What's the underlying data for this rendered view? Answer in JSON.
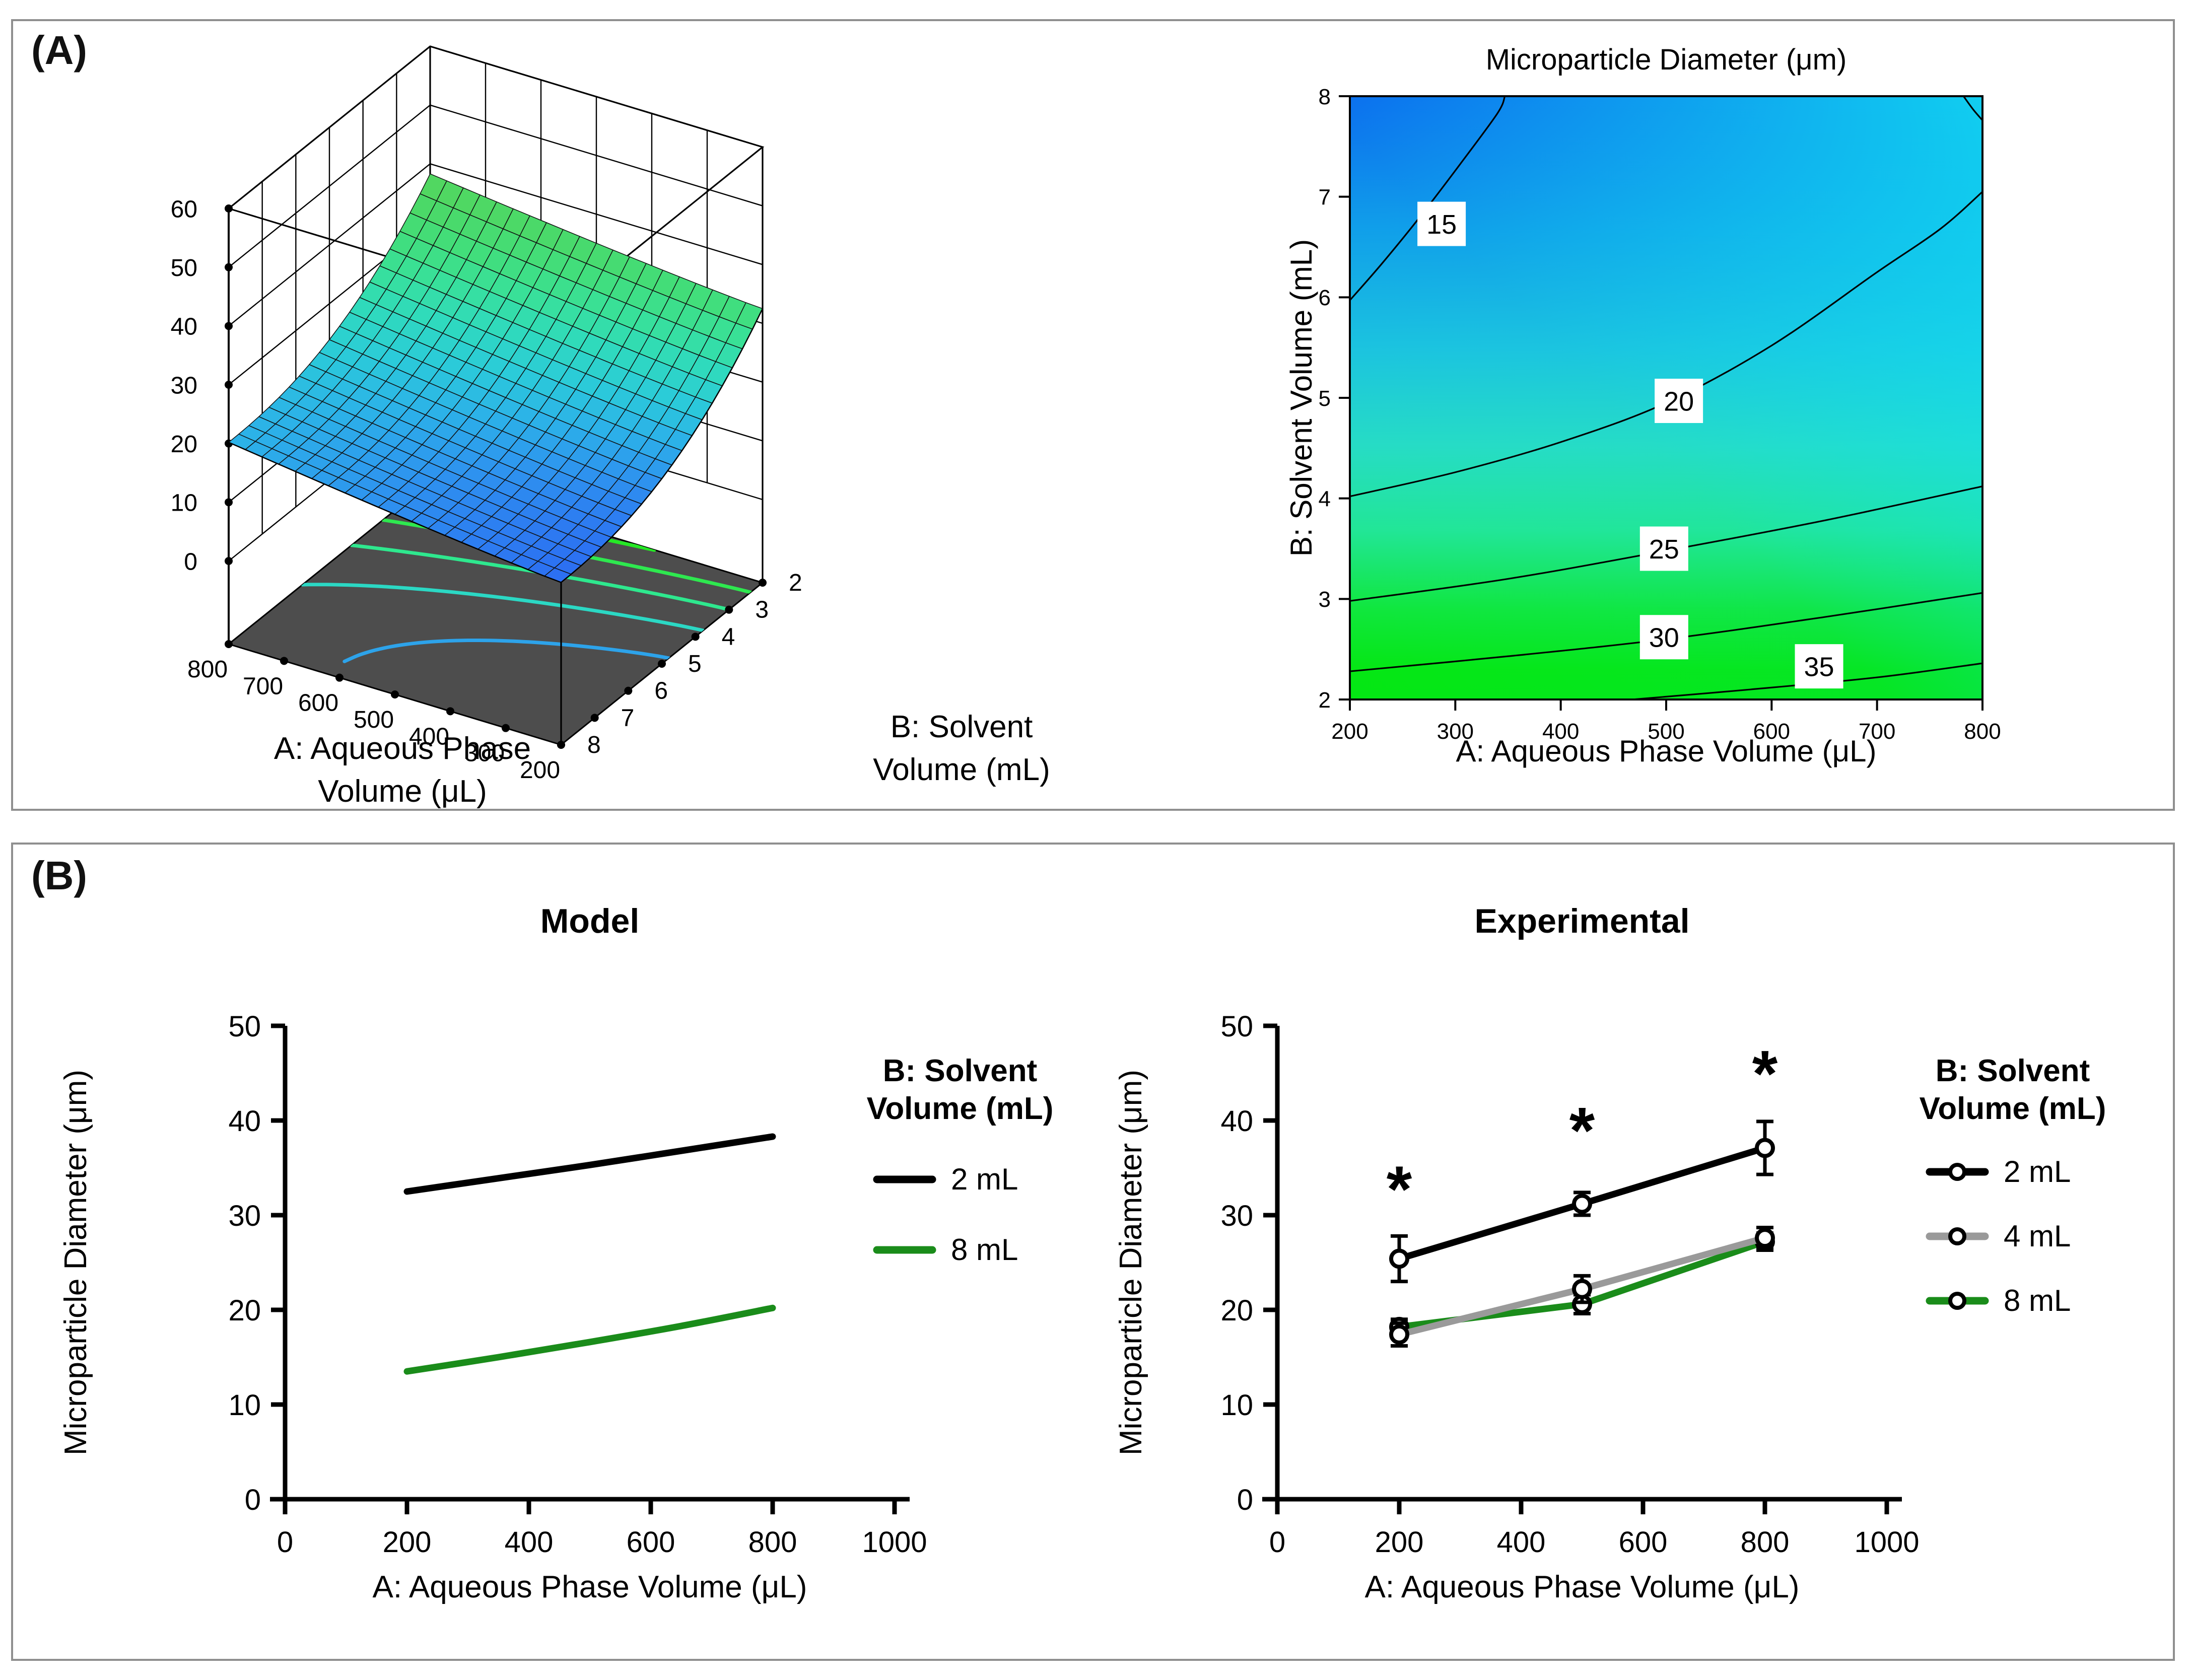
{
  "panel_a": {
    "label": "(A)"
  },
  "panel_b": {
    "label": "(B)"
  },
  "colors": {
    "panel_border": "#8f8f8f",
    "series_black": "#000000",
    "series_gray": "#9a9a9a",
    "series_green": "#1a8c1a",
    "floor": "#4d4d4d",
    "contour_blue": "#0b62ee",
    "contour_cyan": "#12e1f0",
    "contour_green": "#04e713"
  },
  "chart_data": [
    {
      "id": "surface3d",
      "type": "surface3d",
      "x_label_lines": [
        "A: Aqueous Phase",
        "Volume (μL)"
      ],
      "y_label_lines": [
        "B: Solvent",
        "Volume (mL)"
      ],
      "x_ticks": [
        800,
        700,
        600,
        500,
        400,
        300,
        200
      ],
      "y_ticks": [
        8,
        7,
        6,
        5,
        4,
        3,
        2
      ],
      "z_ticks": [
        0,
        10,
        20,
        30,
        40,
        50,
        60
      ],
      "x_range": [
        200,
        800
      ],
      "y_range": [
        2,
        8
      ],
      "z_range": [
        0,
        60
      ],
      "surface_model": {
        "z_a200_b8": 13.5,
        "z_a800_b8": 20.2,
        "z_a200_b2": 32.5,
        "z_a800_b2": 38.3,
        "curve_exp_a": 1.15,
        "curve_exp_b": 2.3
      },
      "surface_colors": [
        [
          13.5,
          "#2c6ff2"
        ],
        [
          17,
          "#2e92ef"
        ],
        [
          20,
          "#2cb2e8"
        ],
        [
          23,
          "#2bcbd9"
        ],
        [
          26,
          "#2fdabd"
        ],
        [
          29,
          "#38e09b"
        ],
        [
          32,
          "#41de7c"
        ],
        [
          35,
          "#4bd969"
        ],
        [
          38.3,
          "#55d65c"
        ]
      ],
      "floor_color": "#4d4d4d",
      "floor_contours": [
        {
          "level": 18,
          "color": "#2da3ea"
        },
        {
          "level": 22,
          "color": "#2bd8c4"
        },
        {
          "level": 26,
          "color": "#2ee88e"
        },
        {
          "level": 30,
          "color": "#2ee84f"
        },
        {
          "level": 34,
          "color": "#25e825"
        }
      ]
    },
    {
      "id": "contour",
      "type": "contour",
      "title": "Microparticle Diameter (μm)",
      "x_label": "A: Aqueous Phase Volume (μL)",
      "y_label": "B: Solvent Volume (mL)",
      "x_ticks": [
        200,
        300,
        400,
        500,
        600,
        700,
        800
      ],
      "y_ticks": [
        2,
        3,
        4,
        5,
        6,
        7,
        8
      ],
      "x_range": [
        200,
        800
      ],
      "y_range": [
        2,
        8
      ],
      "gradient": {
        "top_left": "#0b62ee",
        "top_right": "#12dcee",
        "bottom": "#04e713"
      },
      "lines": [
        {
          "label": "15",
          "points": [
            [
              200,
              5.97
            ],
            [
              230,
              6.33
            ],
            [
              265,
              6.78
            ],
            [
              305,
              7.33
            ],
            [
              340,
              7.83
            ],
            [
              347,
              8
            ]
          ],
          "label_at": [
            287,
            6.73
          ]
        },
        {
          "label": "20",
          "points": [
            [
              200,
              4.02
            ],
            [
              300,
              4.26
            ],
            [
              400,
              4.56
            ],
            [
              500,
              4.95
            ],
            [
              600,
              5.52
            ],
            [
              700,
              6.25
            ],
            [
              760,
              6.68
            ],
            [
              800,
              7.05
            ]
          ],
          "label_at": [
            512,
            4.97
          ]
        },
        {
          "label": "",
          "points": [
            [
              782,
              8
            ],
            [
              791,
              7.87
            ],
            [
              800,
              7.76
            ]
          ],
          "label_at": null
        },
        {
          "label": "25",
          "points": [
            [
              200,
              2.98
            ],
            [
              350,
              3.2
            ],
            [
              500,
              3.48
            ],
            [
              650,
              3.78
            ],
            [
              800,
              4.12
            ]
          ],
          "label_at": [
            498,
            3.5
          ]
        },
        {
          "label": "30",
          "points": [
            [
              200,
              2.28
            ],
            [
              350,
              2.43
            ],
            [
              500,
              2.6
            ],
            [
              650,
              2.82
            ],
            [
              800,
              3.06
            ]
          ],
          "label_at": [
            498,
            2.62
          ]
        },
        {
          "label": "35",
          "points": [
            [
              468,
              2.0
            ],
            [
              580,
              2.1
            ],
            [
              700,
              2.22
            ],
            [
              800,
              2.36
            ]
          ],
          "label_at": [
            645,
            2.33
          ]
        }
      ]
    },
    {
      "id": "model",
      "type": "line",
      "title": "Model",
      "x_label": "A: Aqueous Phase Volume (μL)",
      "y_label": "Microparticle Diameter (μm)",
      "x_ticks": [
        0,
        200,
        400,
        600,
        800,
        1000
      ],
      "y_ticks": [
        0,
        10,
        20,
        30,
        40,
        50
      ],
      "x_range": [
        0,
        1000
      ],
      "y_range": [
        0,
        50
      ],
      "legend_title_lines": [
        "B: Solvent",
        "Volume (mL)"
      ],
      "series": [
        {
          "name": "2 mL",
          "color": "#000000",
          "markers": false,
          "smooth": true,
          "x": [
            200,
            350,
            500,
            650,
            800
          ],
          "y": [
            32.5,
            33.9,
            35.3,
            36.8,
            38.3
          ]
        },
        {
          "name": "8 mL",
          "color": "#1a8c1a",
          "markers": false,
          "smooth": true,
          "x": [
            200,
            350,
            500,
            650,
            800
          ],
          "y": [
            13.5,
            15.0,
            16.6,
            18.3,
            20.2
          ]
        }
      ],
      "annotations": []
    },
    {
      "id": "experimental",
      "type": "line",
      "title": "Experimental",
      "x_label": "A: Aqueous Phase Volume (μL)",
      "y_label": "Microparticle Diameter (μm)",
      "x_ticks": [
        0,
        200,
        400,
        600,
        800,
        1000
      ],
      "y_ticks": [
        0,
        10,
        20,
        30,
        40,
        50
      ],
      "x_range": [
        0,
        1000
      ],
      "y_range": [
        0,
        50
      ],
      "legend_title_lines": [
        "B: Solvent",
        "Volume (mL)"
      ],
      "series": [
        {
          "name": "2 mL",
          "color": "#000000",
          "markers": true,
          "smooth": false,
          "x": [
            200,
            500,
            800
          ],
          "y": [
            25.4,
            31.2,
            37.1
          ],
          "err": [
            2.4,
            1.2,
            2.8
          ]
        },
        {
          "name": "4 mL",
          "color": "#9a9a9a",
          "markers": true,
          "smooth": false,
          "x": [
            200,
            500,
            800
          ],
          "y": [
            17.4,
            22.2,
            27.6
          ],
          "err": [
            1.2,
            1.4,
            1.1
          ]
        },
        {
          "name": "8 mL",
          "color": "#1a8c1a",
          "markers": true,
          "smooth": false,
          "x": [
            200,
            500,
            800
          ],
          "y": [
            18.2,
            20.6,
            27.2
          ],
          "err": [
            0.8,
            1.0,
            0.9
          ]
        }
      ],
      "annotations": [
        {
          "text": "*",
          "x": 200,
          "y": 33.3
        },
        {
          "text": "*",
          "x": 500,
          "y": 39.5
        },
        {
          "text": "*",
          "x": 800,
          "y": 45.5
        }
      ]
    }
  ]
}
